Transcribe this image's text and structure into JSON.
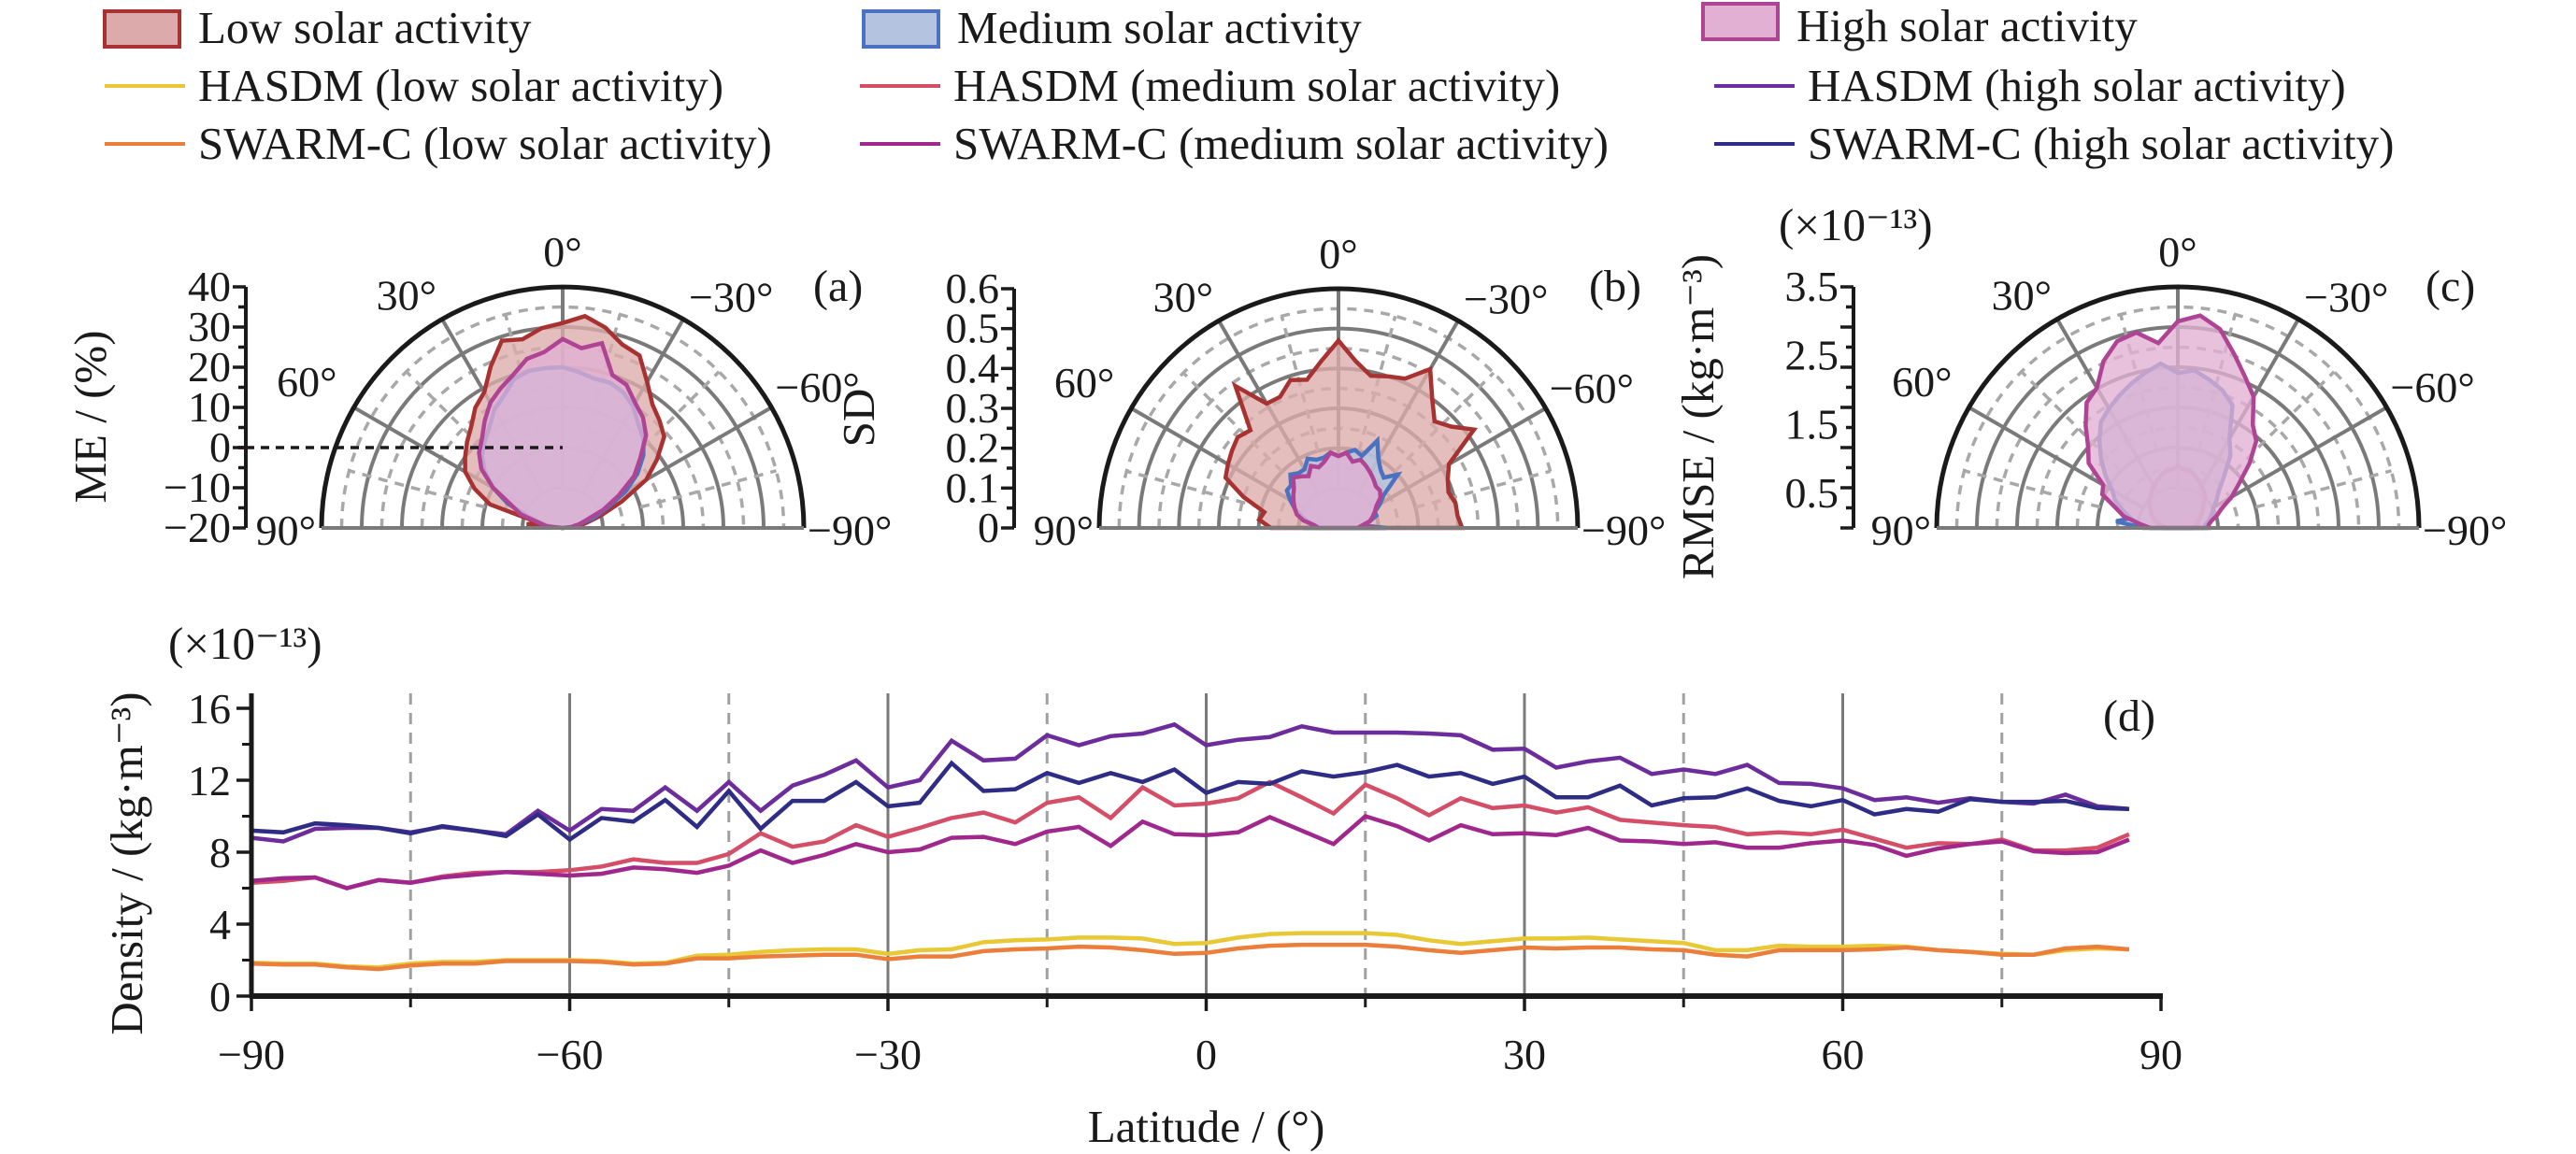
{
  "legend": {
    "areas": [
      {
        "label": "Low solar activity",
        "fill": "#dcaaaa",
        "stroke": "#a83232"
      },
      {
        "label": "Medium solar activity",
        "fill": "#b4c4e0",
        "stroke": "#4a72c0"
      },
      {
        "label": "High solar activity",
        "fill": "#e2b0d2",
        "stroke": "#b04494"
      }
    ],
    "lines": [
      {
        "label": "HASDM (low solar activity)",
        "color": "#e8c834"
      },
      {
        "label": "HASDM (medium solar activity)",
        "color": "#d44e68"
      },
      {
        "label": "HASDM (high solar activity)",
        "color": "#6c2c9c"
      },
      {
        "label": "SWARM-C (low solar activity)",
        "color": "#ec7e3c"
      },
      {
        "label": "SWARM-C (medium solar activity)",
        "color": "#a0288c"
      },
      {
        "label": "SWARM-C (high solar activity)",
        "color": "#2e2c84"
      }
    ]
  },
  "chart_data": [
    {
      "type": "polar-area",
      "panel_label": "(a)",
      "title": "",
      "ylabel": "ME / (%)",
      "scale_note": "",
      "r_range": [
        -20,
        40
      ],
      "r_ticks": [
        40,
        30,
        20,
        10,
        0,
        -10,
        -20
      ],
      "r_tick_labels": [
        "40",
        "30",
        "20",
        "10",
        "0",
        "−10",
        "−20"
      ],
      "angle_labels": [
        "90°",
        "60°",
        "30°",
        "0°",
        "−30°",
        "−60°",
        "−90°"
      ],
      "reference_line_value": 0,
      "angles_deg": [
        90,
        84,
        78,
        72,
        66,
        60,
        54,
        48,
        42,
        36,
        30,
        24,
        18,
        12,
        6,
        0,
        -6,
        -12,
        -18,
        -24,
        -30,
        -36,
        -42,
        -48,
        -54,
        -60,
        -66,
        -72,
        -78,
        -84,
        -90
      ],
      "series": [
        {
          "name": "Low solar activity",
          "values": [
            -20,
            -11,
            -14,
            -1,
            4,
            8,
            10,
            12,
            14,
            17,
            19,
            24,
            29,
            28,
            30,
            31,
            33,
            31,
            28,
            27,
            22,
            18,
            16,
            14,
            9,
            4,
            -4,
            -10,
            -14,
            -16,
            -20
          ]
        },
        {
          "name": "Medium solar activity",
          "values": [
            -20,
            -17,
            -15,
            -11,
            -5,
            0,
            4,
            7,
            9,
            11,
            14,
            16,
            19,
            20,
            20,
            20,
            19,
            18,
            18,
            17,
            15,
            12,
            10,
            7,
            3,
            -2,
            -8,
            -12,
            -16,
            -18,
            -20
          ]
        },
        {
          "name": "High solar activity",
          "values": [
            -20,
            -16,
            -14,
            -9,
            -6,
            0,
            5,
            8,
            10,
            13,
            16,
            18,
            20,
            23,
            24,
            27,
            25,
            27,
            20,
            19,
            16,
            14,
            11,
            6,
            2,
            -4,
            -9,
            -14,
            -16,
            -18,
            -20
          ]
        }
      ]
    },
    {
      "type": "polar-area",
      "panel_label": "(b)",
      "title": "",
      "ylabel": "SD",
      "scale_note": "",
      "r_range": [
        0,
        0.6
      ],
      "r_ticks": [
        0.6,
        0.5,
        0.4,
        0.3,
        0.2,
        0.1,
        0
      ],
      "r_tick_labels": [
        "0.6",
        "0.5",
        "0.4",
        "0.3",
        "0.2",
        "0.1",
        "0"
      ],
      "angle_labels": [
        "90°",
        "60°",
        "30°",
        "0°",
        "−30°",
        "−60°",
        "−90°"
      ],
      "angles_deg": [
        90,
        84,
        78,
        72,
        66,
        60,
        54,
        48,
        42,
        36,
        30,
        24,
        18,
        12,
        6,
        0,
        -6,
        -12,
        -18,
        -24,
        -30,
        -36,
        -42,
        -48,
        -54,
        -60,
        -66,
        -72,
        -78,
        -84,
        -90
      ],
      "series": [
        {
          "name": "Low solar activity",
          "values": [
            0.17,
            0.2,
            0.19,
            0.25,
            0.31,
            0.32,
            0.33,
            0.34,
            0.33,
            0.44,
            0.36,
            0.36,
            0.39,
            0.38,
            0.42,
            0.47,
            0.42,
            0.39,
            0.4,
            0.41,
            0.46,
            0.4,
            0.36,
            0.38,
            0.42,
            0.32,
            0.3,
            0.29,
            0.3,
            0.3,
            0.31
          ]
        },
        {
          "name": "Medium solar activity",
          "values": [
            0.07,
            0.06,
            0.08,
            0.1,
            0.12,
            0.14,
            0.16,
            0.16,
            0.18,
            0.17,
            0.17,
            0.19,
            0.18,
            0.18,
            0.19,
            0.18,
            0.19,
            0.2,
            0.19,
            0.24,
            0.2,
            0.18,
            0.17,
            0.2,
            0.14,
            0.12,
            0.1,
            0.1,
            0.08,
            0.06,
            0.12
          ]
        },
        {
          "name": "High solar activity",
          "values": [
            0.05,
            0.06,
            0.09,
            0.11,
            0.12,
            0.13,
            0.14,
            0.15,
            0.17,
            0.16,
            0.15,
            0.17,
            0.16,
            0.17,
            0.19,
            0.18,
            0.19,
            0.17,
            0.18,
            0.17,
            0.16,
            0.15,
            0.14,
            0.14,
            0.13,
            0.11,
            0.1,
            0.09,
            0.08,
            0.06,
            0.1
          ]
        }
      ]
    },
    {
      "type": "polar-area",
      "panel_label": "(c)",
      "title": "",
      "ylabel": "RMSE / (kg·m⁻³)",
      "scale_note": "(×10⁻¹³)",
      "r_range": [
        0,
        3.5
      ],
      "r_ticks": [
        3.5,
        2.5,
        1.5,
        0.5
      ],
      "r_tick_labels": [
        "3.5",
        "2.5",
        "1.5",
        "0.5"
      ],
      "angle_labels": [
        "90°",
        "60°",
        "30°",
        "0°",
        "−30°",
        "−60°",
        "−90°"
      ],
      "angles_deg": [
        90,
        84,
        78,
        72,
        66,
        60,
        54,
        48,
        42,
        36,
        30,
        24,
        18,
        12,
        6,
        0,
        -6,
        -12,
        -18,
        -24,
        -30,
        -36,
        -42,
        -48,
        -54,
        -60,
        -66,
        -72,
        -78,
        -84,
        -90
      ],
      "series": [
        {
          "name": "Low solar activity",
          "values": [
            0.2,
            0.2,
            0.3,
            0.35,
            0.4,
            0.45,
            0.5,
            0.55,
            0.6,
            0.65,
            0.7,
            0.75,
            0.8,
            0.85,
            0.85,
            0.9,
            0.85,
            0.85,
            0.8,
            0.75,
            0.7,
            0.65,
            0.6,
            0.5,
            0.45,
            0.4,
            0.35,
            0.3,
            0.3,
            0.25,
            0.2
          ]
        },
        {
          "name": "Medium solar activity",
          "values": [
            0.5,
            0.9,
            0.7,
            0.85,
            1.0,
            1.1,
            1.3,
            1.5,
            1.7,
            1.9,
            2.0,
            2.1,
            2.2,
            2.3,
            2.4,
            2.25,
            2.3,
            2.2,
            2.1,
            1.95,
            1.5,
            1.3,
            1.0,
            0.8,
            0.7,
            0.6,
            0.55,
            0.5,
            0.45,
            0.4,
            0.4
          ]
        },
        {
          "name": "High solar activity",
          "values": [
            0.4,
            0.55,
            0.8,
            0.95,
            1.2,
            1.25,
            1.6,
            1.75,
            2.0,
            2.25,
            2.35,
            2.65,
            2.85,
            2.9,
            2.7,
            3.0,
            3.1,
            2.95,
            2.65,
            2.4,
            2.2,
            1.85,
            1.7,
            1.4,
            1.1,
            0.9,
            0.7,
            0.6,
            0.5,
            0.45,
            0.45
          ]
        }
      ]
    },
    {
      "type": "line",
      "panel_label": "(d)",
      "title": "",
      "xlabel": "Latitude / (°)",
      "ylabel": "Density / (kg·m⁻³)",
      "scale_note": "(×10⁻¹³)",
      "xlim": [
        -90,
        90
      ],
      "ylim": [
        0,
        17
      ],
      "x_ticks": [
        -90,
        -60,
        -30,
        0,
        30,
        60,
        90
      ],
      "x_tick_labels": [
        "−90",
        "−60",
        "−30",
        "0",
        "30",
        "60",
        "90"
      ],
      "x_minor_ticks": [
        -75,
        -45,
        -15,
        15,
        45,
        75
      ],
      "y_ticks": [
        0,
        4,
        8,
        12,
        16
      ],
      "y_tick_labels": [
        "0",
        "4",
        "8",
        "12",
        "16"
      ],
      "y_minor_ticks": [
        2,
        6,
        10,
        14
      ],
      "grid": "vertical: solid at major x ticks, dashed at minor x ticks",
      "x": [
        -90,
        -87,
        -84,
        -81,
        -78,
        -75,
        -72,
        -69,
        -66,
        -63,
        -60,
        -57,
        -54,
        -51,
        -48,
        -45,
        -42,
        -39,
        -36,
        -33,
        -30,
        -27,
        -24,
        -21,
        -18,
        -15,
        -12,
        -9,
        -6,
        -3,
        0,
        3,
        6,
        9,
        12,
        15,
        18,
        21,
        24,
        27,
        30,
        33,
        36,
        39,
        42,
        45,
        48,
        51,
        54,
        57,
        60,
        63,
        66,
        69,
        72,
        75,
        78,
        81,
        84,
        87
      ],
      "series": [
        {
          "name": "HASDM (low solar activity)",
          "values": [
            1.85,
            1.8,
            1.8,
            1.65,
            1.6,
            1.8,
            1.9,
            1.9,
            2.0,
            2.0,
            2.0,
            1.95,
            1.8,
            1.85,
            2.25,
            2.3,
            2.45,
            2.55,
            2.6,
            2.6,
            2.35,
            2.55,
            2.6,
            3.0,
            3.1,
            3.15,
            3.25,
            3.25,
            3.2,
            2.9,
            2.95,
            3.25,
            3.45,
            3.5,
            3.5,
            3.5,
            3.4,
            3.1,
            2.9,
            3.05,
            3.2,
            3.2,
            3.25,
            3.15,
            3.05,
            2.95,
            2.55,
            2.55,
            2.8,
            2.75,
            2.75,
            2.8,
            2.75,
            2.55,
            2.45,
            2.35,
            2.3,
            2.55,
            2.65,
            2.6
          ]
        },
        {
          "name": "HASDM (medium solar activity)",
          "values": [
            6.3,
            6.4,
            6.6,
            6.0,
            6.45,
            6.3,
            6.65,
            6.85,
            6.9,
            6.9,
            7.0,
            7.2,
            7.6,
            7.4,
            7.4,
            7.9,
            9.05,
            8.3,
            8.6,
            9.5,
            8.85,
            9.35,
            9.9,
            10.2,
            9.65,
            10.75,
            11.05,
            9.9,
            11.6,
            10.6,
            10.7,
            11.0,
            11.9,
            11.05,
            10.15,
            11.75,
            11.0,
            10.05,
            11.0,
            10.45,
            10.6,
            10.2,
            10.5,
            9.8,
            9.65,
            9.5,
            9.4,
            9.0,
            9.1,
            9.0,
            9.25,
            8.75,
            8.25,
            8.5,
            8.45,
            8.7,
            8.1,
            8.1,
            8.25,
            9.0
          ]
        },
        {
          "name": "HASDM (high solar activity)",
          "values": [
            8.8,
            8.6,
            9.3,
            9.35,
            9.35,
            9.1,
            9.4,
            9.2,
            9.0,
            10.3,
            9.2,
            10.4,
            10.3,
            11.6,
            10.3,
            11.9,
            10.3,
            11.7,
            12.3,
            13.1,
            11.6,
            12.0,
            14.2,
            13.1,
            13.2,
            14.5,
            13.95,
            14.45,
            14.6,
            15.1,
            13.95,
            14.25,
            14.4,
            15.0,
            14.65,
            14.65,
            14.65,
            14.6,
            14.5,
            13.7,
            13.75,
            12.7,
            13.05,
            13.25,
            12.35,
            12.6,
            12.35,
            12.85,
            11.85,
            11.8,
            11.55,
            10.9,
            11.05,
            10.75,
            11.0,
            10.8,
            10.7,
            11.2,
            10.55,
            10.4
          ]
        },
        {
          "name": "SWARM-C (low solar activity)",
          "values": [
            1.8,
            1.75,
            1.75,
            1.6,
            1.5,
            1.7,
            1.8,
            1.8,
            1.95,
            1.95,
            1.95,
            1.9,
            1.75,
            1.8,
            2.1,
            2.1,
            2.2,
            2.25,
            2.3,
            2.3,
            2.05,
            2.2,
            2.2,
            2.5,
            2.6,
            2.65,
            2.75,
            2.7,
            2.55,
            2.35,
            2.4,
            2.65,
            2.8,
            2.85,
            2.85,
            2.85,
            2.75,
            2.55,
            2.4,
            2.55,
            2.7,
            2.65,
            2.7,
            2.7,
            2.6,
            2.55,
            2.3,
            2.2,
            2.55,
            2.55,
            2.55,
            2.6,
            2.7,
            2.55,
            2.45,
            2.3,
            2.3,
            2.65,
            2.75,
            2.6
          ]
        },
        {
          "name": "SWARM-C (medium solar activity)",
          "values": [
            6.4,
            6.55,
            6.6,
            6.0,
            6.45,
            6.3,
            6.6,
            6.75,
            6.9,
            6.8,
            6.7,
            6.8,
            7.15,
            7.05,
            6.85,
            7.25,
            8.1,
            7.4,
            7.85,
            8.45,
            8.0,
            8.15,
            8.8,
            8.85,
            8.45,
            9.15,
            9.4,
            8.35,
            9.7,
            9.0,
            8.95,
            9.1,
            9.95,
            9.2,
            8.45,
            10.0,
            9.45,
            8.65,
            9.5,
            9.0,
            9.05,
            8.95,
            9.35,
            8.65,
            8.6,
            8.45,
            8.55,
            8.25,
            8.25,
            8.5,
            8.65,
            8.4,
            7.8,
            8.2,
            8.45,
            8.6,
            8.05,
            7.95,
            8.0,
            8.7
          ]
        },
        {
          "name": "SWARM-C (high solar activity)",
          "values": [
            9.2,
            9.1,
            9.6,
            9.5,
            9.35,
            9.05,
            9.45,
            9.2,
            8.9,
            10.1,
            8.7,
            9.9,
            9.7,
            10.9,
            9.4,
            11.4,
            9.3,
            10.85,
            10.85,
            11.9,
            10.55,
            10.75,
            12.95,
            11.4,
            11.5,
            12.4,
            11.85,
            12.4,
            11.9,
            12.6,
            11.3,
            11.9,
            11.8,
            12.5,
            12.2,
            12.45,
            12.85,
            12.2,
            12.4,
            11.8,
            12.2,
            11.05,
            11.05,
            11.7,
            10.6,
            11.0,
            11.05,
            11.55,
            10.85,
            10.55,
            10.9,
            10.1,
            10.4,
            10.25,
            10.95,
            10.8,
            10.8,
            10.85,
            10.45,
            10.4
          ]
        }
      ]
    }
  ]
}
